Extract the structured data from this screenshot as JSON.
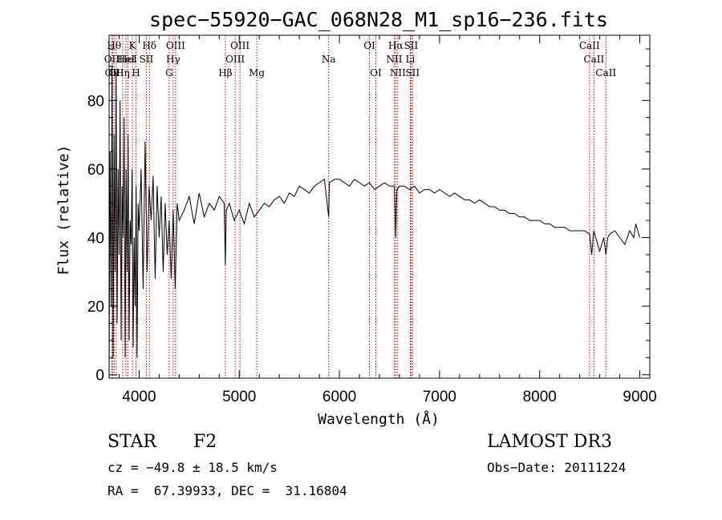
{
  "chart_data": {
    "type": "line",
    "title": "spec−55920−GAC_068N28_M1_sp16−236.fits",
    "xlabel": "Wavelength (Å)",
    "ylabel": "Flux (relative)",
    "xlim": [
      3700,
      9100
    ],
    "ylim": [
      -1,
      99
    ],
    "xticks": [
      {
        "value": 4000,
        "label": "4000"
      },
      {
        "value": 5000,
        "label": "5000"
      },
      {
        "value": 6000,
        "label": "6000"
      },
      {
        "value": 7000,
        "label": "7000"
      },
      {
        "value": 8000,
        "label": "8000"
      },
      {
        "value": 9000,
        "label": "9000"
      }
    ],
    "yticks": [
      {
        "value": 0,
        "label": "0"
      },
      {
        "value": 20,
        "label": "20"
      },
      {
        "value": 40,
        "label": "40"
      },
      {
        "value": 60,
        "label": "60"
      },
      {
        "value": 80,
        "label": "80"
      }
    ],
    "series": [
      {
        "name": "flux",
        "x": [
          3700,
          3710,
          3720,
          3730,
          3740,
          3750,
          3760,
          3770,
          3780,
          3790,
          3800,
          3810,
          3820,
          3830,
          3840,
          3850,
          3860,
          3870,
          3880,
          3890,
          3900,
          3910,
          3920,
          3930,
          3940,
          3950,
          3960,
          3970,
          3980,
          3990,
          4000,
          4020,
          4040,
          4060,
          4080,
          4100,
          4120,
          4140,
          4160,
          4180,
          4200,
          4220,
          4240,
          4260,
          4280,
          4300,
          4320,
          4340,
          4360,
          4380,
          4400,
          4450,
          4500,
          4550,
          4600,
          4650,
          4700,
          4750,
          4800,
          4850,
          4861,
          4870,
          4900,
          4950,
          5000,
          5050,
          5100,
          5150,
          5200,
          5250,
          5300,
          5350,
          5400,
          5450,
          5500,
          5550,
          5600,
          5650,
          5700,
          5750,
          5800,
          5850,
          5893,
          5900,
          5950,
          6000,
          6050,
          6100,
          6150,
          6200,
          6250,
          6300,
          6350,
          6400,
          6450,
          6500,
          6550,
          6563,
          6575,
          6600,
          6650,
          6700,
          6750,
          6800,
          6850,
          6900,
          6950,
          7000,
          7050,
          7100,
          7150,
          7200,
          7250,
          7300,
          7350,
          7400,
          7450,
          7500,
          7550,
          7600,
          7650,
          7700,
          7750,
          7800,
          7850,
          7900,
          7950,
          8000,
          8050,
          8100,
          8150,
          8200,
          8250,
          8300,
          8350,
          8400,
          8450,
          8500,
          8520,
          8540,
          8560,
          8600,
          8640,
          8662,
          8680,
          8700,
          8750,
          8800,
          8850,
          8900,
          8940,
          8960,
          8980,
          9000
        ],
        "y": [
          0,
          65,
          20,
          90,
          5,
          70,
          30,
          88,
          15,
          60,
          35,
          80,
          10,
          55,
          40,
          75,
          5,
          60,
          30,
          70,
          10,
          45,
          38,
          60,
          8,
          40,
          20,
          55,
          5,
          50,
          42,
          60,
          25,
          68,
          30,
          55,
          45,
          58,
          28,
          55,
          40,
          52,
          30,
          50,
          35,
          45,
          28,
          48,
          25,
          50,
          45,
          48,
          52,
          44,
          53,
          46,
          50,
          48,
          52,
          50,
          32,
          48,
          50,
          45,
          48,
          44,
          50,
          46,
          48,
          50,
          49,
          51,
          52,
          50,
          53,
          52,
          55,
          54,
          53,
          55,
          56,
          57,
          46,
          56,
          57,
          57,
          56,
          55,
          57,
          56,
          55,
          56,
          54,
          55,
          56,
          55,
          55,
          40,
          54,
          55,
          55,
          54,
          55,
          53,
          54,
          54,
          53,
          54,
          53,
          52,
          53,
          52,
          51,
          51,
          50,
          51,
          50,
          49,
          49,
          48,
          48,
          47,
          47,
          46,
          46,
          45,
          45,
          45,
          44,
          44,
          43,
          43,
          43,
          42,
          42,
          42,
          42,
          41,
          35,
          42,
          40,
          36,
          40,
          35,
          40,
          41,
          42,
          40,
          38,
          42,
          40,
          44,
          42,
          40
        ]
      }
    ],
    "lines": [
      {
        "wl": 3727,
        "label": "OII",
        "row": 2
      },
      {
        "wl": 3734,
        "label": "OII",
        "row": 3
      },
      {
        "wl": 3750,
        "label": "Hθ",
        "row": 1
      },
      {
        "wl": 3771,
        "label": "OII",
        "row": 3
      },
      {
        "wl": 3835,
        "label": "Hη",
        "row": 3
      },
      {
        "wl": 3869,
        "label": "HeI",
        "row": 2
      },
      {
        "wl": 3889,
        "label": "HeI",
        "row": 2
      },
      {
        "wl": 3933,
        "label": "K",
        "row": 1
      },
      {
        "wl": 3968,
        "label": "H",
        "row": 3
      },
      {
        "wl": 4072,
        "label": "SII",
        "row": 2
      },
      {
        "wl": 4102,
        "label": "Hδ",
        "row": 1
      },
      {
        "wl": 4300,
        "label": "G",
        "row": 3
      },
      {
        "wl": 4340,
        "label": "Hγ",
        "row": 2
      },
      {
        "wl": 4364,
        "label": "OIII",
        "row": 1
      },
      {
        "wl": 4861,
        "label": "Hβ",
        "row": 3
      },
      {
        "wl": 4959,
        "label": "OIII",
        "row": 2
      },
      {
        "wl": 5007,
        "label": "OIII",
        "row": 1
      },
      {
        "wl": 5175,
        "label": "Mg",
        "row": 3
      },
      {
        "wl": 5893,
        "label": "Na",
        "row": 2
      },
      {
        "wl": 6300,
        "label": "OI",
        "row": 1
      },
      {
        "wl": 6364,
        "label": "OI",
        "row": 3
      },
      {
        "wl": 6548,
        "label": "NII",
        "row": 2
      },
      {
        "wl": 6563,
        "label": "Hα",
        "row": 1
      },
      {
        "wl": 6583,
        "label": "NII",
        "row": 3
      },
      {
        "wl": 6708,
        "label": "Li",
        "row": 2
      },
      {
        "wl": 6716,
        "label": "SII",
        "row": 1
      },
      {
        "wl": 6731,
        "label": "SII",
        "row": 3
      },
      {
        "wl": 8498,
        "label": "CaII",
        "row": 1
      },
      {
        "wl": 8542,
        "label": "CaII",
        "row": 2
      },
      {
        "wl": 8662,
        "label": "CaII",
        "row": 3
      }
    ]
  },
  "info": {
    "class": "STAR",
    "subclass": "F2",
    "survey": "LAMOST DR3",
    "redshift": "cz = −49.8 ± 18.5 km/s",
    "obs_date": "Obs−Date: 20111224",
    "coords": "RA =  67.39933, DEC =  31.16804"
  }
}
